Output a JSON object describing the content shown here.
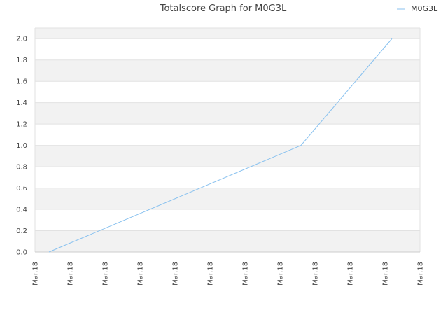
{
  "chart_data": {
    "type": "line",
    "title": "Totalscore Graph for M0G3L",
    "xlabel": "",
    "ylabel": "",
    "legend_position": "top-right",
    "grid": true,
    "x_ticks": [
      "Mar.18",
      "Mar.18",
      "Mar.18",
      "Mar.18",
      "Mar.18",
      "Mar.18",
      "Mar.18",
      "Mar.18",
      "Mar.18",
      "Mar.18",
      "Mar.18",
      "Mar.18"
    ],
    "y_ticks": [
      "0.0",
      "0.2",
      "0.4",
      "0.6",
      "0.8",
      "1.0",
      "1.2",
      "1.4",
      "1.6",
      "1.8",
      "2.0"
    ],
    "ylim": [
      0,
      2.1
    ],
    "series": [
      {
        "name": "M0G3L",
        "color": "#88c1ef",
        "x": [
          0.4,
          7.6,
          10.2
        ],
        "y": [
          0.0,
          1.0,
          2.0
        ]
      }
    ],
    "xlim": [
      0,
      11
    ]
  }
}
